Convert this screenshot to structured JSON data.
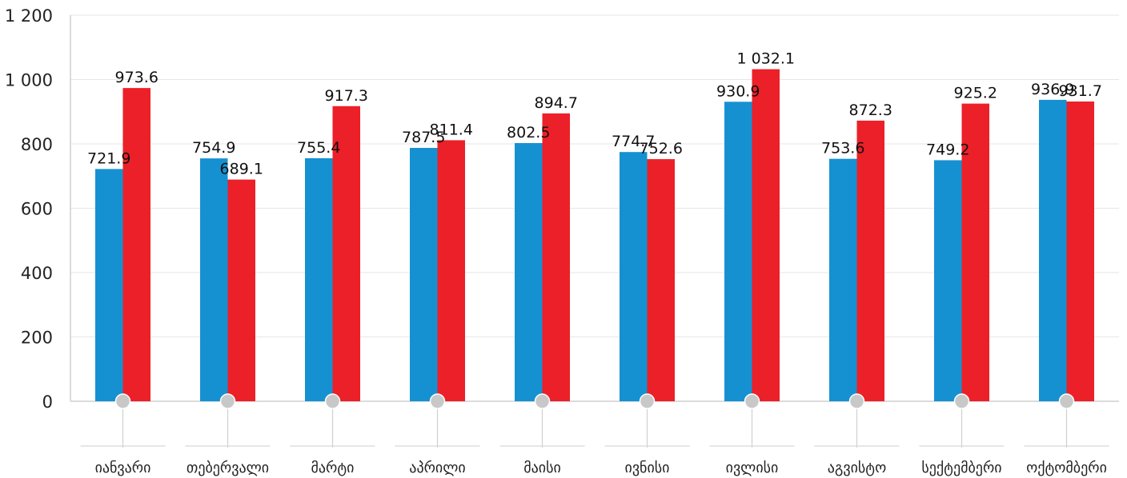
{
  "chart_data": {
    "type": "bar",
    "title": "",
    "xlabel": "",
    "ylabel": "",
    "ylim": [
      0,
      1200
    ],
    "yticks": [
      0,
      200,
      400,
      600,
      800,
      1000,
      1200
    ],
    "ytick_labels": [
      "0",
      "200",
      "400",
      "600",
      "800",
      "1 000",
      "1 200"
    ],
    "grid": true,
    "legend": "none",
    "categories": [
      "იანვარი",
      "თებერვალი",
      "მარტი",
      "აპრილი",
      "მაისი",
      "ივნისი",
      "ივლისი",
      "აგვისტო",
      "სექტემბერი",
      "ოქტომბერი"
    ],
    "series": [
      {
        "color": "#1591d2",
        "values": [
          721.9,
          754.9,
          755.4,
          787.5,
          802.5,
          774.7,
          930.9,
          753.6,
          749.2,
          936.9
        ],
        "labels": [
          "721.9",
          "754.9",
          "755.4",
          "787.5",
          "802.5",
          "774.7",
          "930.9",
          "753.6",
          "749.2",
          "936.9"
        ]
      },
      {
        "color": "#ec2028",
        "values": [
          973.6,
          689.1,
          917.3,
          811.4,
          894.7,
          752.6,
          1032.1,
          872.3,
          925.2,
          931.7
        ],
        "labels": [
          "973.6",
          "689.1",
          "917.3",
          "811.4",
          "894.7",
          "752.6",
          "1 032.1",
          "872.3",
          "925.2",
          "931.7"
        ]
      }
    ]
  }
}
